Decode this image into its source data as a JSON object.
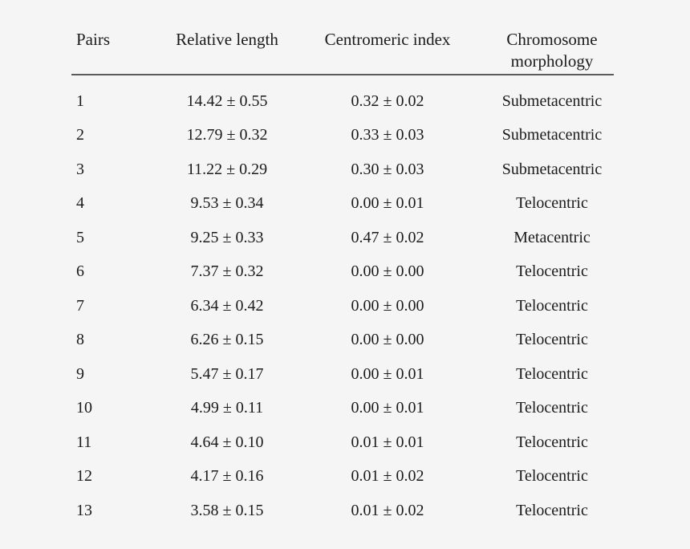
{
  "page": {
    "background": "#f5f5f6",
    "text_color": "#1b1b1b",
    "rule_color": "#5a5a5a"
  },
  "table": {
    "columns": [
      {
        "id": "pairs",
        "label": "Pairs"
      },
      {
        "id": "relative_length",
        "label": "Relative length"
      },
      {
        "id": "centromeric_index",
        "label": "Centromeric index"
      },
      {
        "id": "chromosome_morphology",
        "label": "Chromosome morphology"
      }
    ],
    "rows": [
      [
        "1",
        "14.42 ± 0.55",
        "0.32 ± 0.02",
        "Submetacentric"
      ],
      [
        "2",
        "12.79 ± 0.32",
        "0.33 ± 0.03",
        "Submetacentric"
      ],
      [
        "3",
        "11.22 ± 0.29",
        "0.30 ± 0.03",
        "Submetacentric"
      ],
      [
        "4",
        "9.53 ± 0.34",
        "0.00 ± 0.01",
        "Telocentric"
      ],
      [
        "5",
        "9.25 ± 0.33",
        "0.47 ± 0.02",
        "Metacentric"
      ],
      [
        "6",
        "7.37 ± 0.32",
        "0.00 ± 0.00",
        "Telocentric"
      ],
      [
        "7",
        "6.34 ± 0.42",
        "0.00 ± 0.00",
        "Telocentric"
      ],
      [
        "8",
        "6.26 ± 0.15",
        "0.00 ± 0.00",
        "Telocentric"
      ],
      [
        "9",
        "5.47 ± 0.17",
        "0.00 ± 0.01",
        "Telocentric"
      ],
      [
        "10",
        "4.99 ± 0.11",
        "0.00 ± 0.01",
        "Telocentric"
      ],
      [
        "11",
        "4.64 ± 0.10",
        "0.01 ± 0.01",
        "Telocentric"
      ],
      [
        "12",
        "4.17 ± 0.16",
        "0.01 ± 0.02",
        "Telocentric"
      ],
      [
        "13",
        "3.58 ± 0.15",
        "0.01 ± 0.02",
        "Telocentric"
      ]
    ]
  }
}
